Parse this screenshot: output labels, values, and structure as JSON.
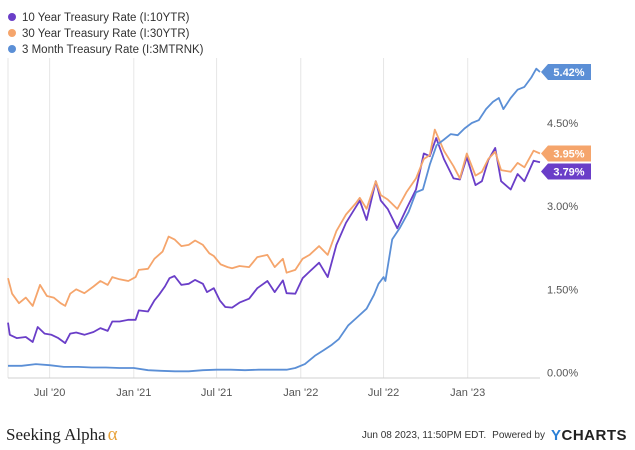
{
  "chart_data": {
    "type": "line",
    "title": "",
    "xlabel": "",
    "ylabel": "",
    "x_ticks": [
      {
        "date": "2020-07-01",
        "label": "Jul '20"
      },
      {
        "date": "2021-01-01",
        "label": "Jan '21"
      },
      {
        "date": "2021-07-01",
        "label": "Jul '21"
      },
      {
        "date": "2022-01-01",
        "label": "Jan '22"
      },
      {
        "date": "2022-07-01",
        "label": "Jul '22"
      },
      {
        "date": "2023-01-01",
        "label": "Jan '23"
      }
    ],
    "xlim": [
      "2020-04-01",
      "2023-06-08"
    ],
    "y_ticks": [
      {
        "value": 0,
        "label": "0.00%"
      },
      {
        "value": 1.5,
        "label": "1.50%"
      },
      {
        "value": 3.0,
        "label": "3.00%"
      },
      {
        "value": 4.5,
        "label": "4.50%"
      }
    ],
    "ylim": [
      -0.1,
      5.6
    ],
    "grid": "vertical",
    "legend_position": "top-left",
    "series": [
      {
        "name": "10 Year Treasury Rate (I:10YTR)",
        "color": "#6a3ec8",
        "last_label": "3.79%",
        "points": [
          [
            "2020-04-01",
            0.9
          ],
          [
            "2020-04-05",
            0.68
          ],
          [
            "2020-04-20",
            0.62
          ],
          [
            "2020-05-10",
            0.64
          ],
          [
            "2020-05-25",
            0.55
          ],
          [
            "2020-06-05",
            0.82
          ],
          [
            "2020-06-20",
            0.7
          ],
          [
            "2020-07-05",
            0.68
          ],
          [
            "2020-07-20",
            0.62
          ],
          [
            "2020-08-04",
            0.53
          ],
          [
            "2020-08-15",
            0.7
          ],
          [
            "2020-08-28",
            0.72
          ],
          [
            "2020-09-15",
            0.68
          ],
          [
            "2020-10-05",
            0.73
          ],
          [
            "2020-10-20",
            0.8
          ],
          [
            "2020-11-05",
            0.75
          ],
          [
            "2020-11-15",
            0.92
          ],
          [
            "2020-12-01",
            0.92
          ],
          [
            "2020-12-20",
            0.95
          ],
          [
            "2021-01-05",
            0.95
          ],
          [
            "2021-01-12",
            1.12
          ],
          [
            "2021-02-01",
            1.1
          ],
          [
            "2021-02-15",
            1.3
          ],
          [
            "2021-02-25",
            1.4
          ],
          [
            "2021-03-10",
            1.55
          ],
          [
            "2021-03-20",
            1.7
          ],
          [
            "2021-03-31",
            1.74
          ],
          [
            "2021-04-15",
            1.58
          ],
          [
            "2021-05-01",
            1.6
          ],
          [
            "2021-05-15",
            1.67
          ],
          [
            "2021-06-01",
            1.6
          ],
          [
            "2021-06-10",
            1.45
          ],
          [
            "2021-06-25",
            1.52
          ],
          [
            "2021-07-08",
            1.3
          ],
          [
            "2021-07-20",
            1.18
          ],
          [
            "2021-08-04",
            1.17
          ],
          [
            "2021-08-20",
            1.26
          ],
          [
            "2021-09-10",
            1.33
          ],
          [
            "2021-09-28",
            1.52
          ],
          [
            "2021-10-20",
            1.65
          ],
          [
            "2021-11-05",
            1.45
          ],
          [
            "2021-11-23",
            1.66
          ],
          [
            "2021-12-01",
            1.43
          ],
          [
            "2021-12-20",
            1.42
          ],
          [
            "2022-01-05",
            1.7
          ],
          [
            "2022-01-20",
            1.82
          ],
          [
            "2022-02-10",
            1.98
          ],
          [
            "2022-03-01",
            1.72
          ],
          [
            "2022-03-20",
            2.3
          ],
          [
            "2022-04-10",
            2.7
          ],
          [
            "2022-05-01",
            2.98
          ],
          [
            "2022-05-10",
            3.1
          ],
          [
            "2022-05-25",
            2.75
          ],
          [
            "2022-06-14",
            3.45
          ],
          [
            "2022-06-25",
            3.1
          ],
          [
            "2022-07-10",
            2.95
          ],
          [
            "2022-07-31",
            2.6
          ],
          [
            "2022-08-20",
            2.95
          ],
          [
            "2022-09-10",
            3.3
          ],
          [
            "2022-09-27",
            3.95
          ],
          [
            "2022-10-10",
            3.9
          ],
          [
            "2022-10-24",
            4.23
          ],
          [
            "2022-11-10",
            3.85
          ],
          [
            "2022-12-01",
            3.5
          ],
          [
            "2022-12-15",
            3.48
          ],
          [
            "2022-12-30",
            3.88
          ],
          [
            "2023-01-18",
            3.38
          ],
          [
            "2023-02-01",
            3.45
          ],
          [
            "2023-02-15",
            3.83
          ],
          [
            "2023-03-02",
            4.05
          ],
          [
            "2023-03-15",
            3.45
          ],
          [
            "2023-04-05",
            3.3
          ],
          [
            "2023-04-20",
            3.58
          ],
          [
            "2023-05-05",
            3.45
          ],
          [
            "2023-05-25",
            3.82
          ],
          [
            "2023-06-08",
            3.79
          ]
        ]
      },
      {
        "name": "30 Year Treasury Rate (I:30YTR)",
        "color": "#f5a56c",
        "last_label": "3.95%",
        "points": [
          [
            "2020-04-01",
            1.7
          ],
          [
            "2020-04-10",
            1.42
          ],
          [
            "2020-04-25",
            1.25
          ],
          [
            "2020-05-10",
            1.35
          ],
          [
            "2020-05-25",
            1.2
          ],
          [
            "2020-06-10",
            1.58
          ],
          [
            "2020-06-25",
            1.38
          ],
          [
            "2020-07-10",
            1.35
          ],
          [
            "2020-07-25",
            1.25
          ],
          [
            "2020-08-04",
            1.2
          ],
          [
            "2020-08-15",
            1.42
          ],
          [
            "2020-08-28",
            1.5
          ],
          [
            "2020-09-15",
            1.43
          ],
          [
            "2020-10-05",
            1.55
          ],
          [
            "2020-10-20",
            1.65
          ],
          [
            "2020-11-05",
            1.58
          ],
          [
            "2020-11-15",
            1.72
          ],
          [
            "2020-12-01",
            1.68
          ],
          [
            "2020-12-20",
            1.65
          ],
          [
            "2021-01-05",
            1.72
          ],
          [
            "2021-01-12",
            1.85
          ],
          [
            "2021-02-01",
            1.87
          ],
          [
            "2021-02-15",
            2.05
          ],
          [
            "2021-03-05",
            2.18
          ],
          [
            "2021-03-18",
            2.45
          ],
          [
            "2021-03-31",
            2.4
          ],
          [
            "2021-04-15",
            2.28
          ],
          [
            "2021-05-01",
            2.3
          ],
          [
            "2021-05-15",
            2.38
          ],
          [
            "2021-06-01",
            2.3
          ],
          [
            "2021-06-15",
            2.15
          ],
          [
            "2021-06-25",
            2.1
          ],
          [
            "2021-07-10",
            1.95
          ],
          [
            "2021-07-25",
            1.9
          ],
          [
            "2021-08-04",
            1.88
          ],
          [
            "2021-08-20",
            1.92
          ],
          [
            "2021-09-10",
            1.9
          ],
          [
            "2021-09-28",
            2.08
          ],
          [
            "2021-10-20",
            2.12
          ],
          [
            "2021-11-05",
            1.9
          ],
          [
            "2021-11-23",
            2.05
          ],
          [
            "2021-12-01",
            1.8
          ],
          [
            "2021-12-20",
            1.85
          ],
          [
            "2022-01-05",
            2.05
          ],
          [
            "2022-01-20",
            2.12
          ],
          [
            "2022-02-10",
            2.28
          ],
          [
            "2022-03-01",
            2.12
          ],
          [
            "2022-03-20",
            2.55
          ],
          [
            "2022-04-10",
            2.85
          ],
          [
            "2022-05-01",
            3.05
          ],
          [
            "2022-05-10",
            3.15
          ],
          [
            "2022-05-25",
            2.95
          ],
          [
            "2022-06-14",
            3.45
          ],
          [
            "2022-06-25",
            3.2
          ],
          [
            "2022-07-10",
            3.12
          ],
          [
            "2022-07-31",
            2.95
          ],
          [
            "2022-08-20",
            3.25
          ],
          [
            "2022-09-10",
            3.5
          ],
          [
            "2022-09-27",
            3.85
          ],
          [
            "2022-10-10",
            3.92
          ],
          [
            "2022-10-21",
            4.38
          ],
          [
            "2022-11-10",
            4.0
          ],
          [
            "2022-12-01",
            3.72
          ],
          [
            "2022-12-15",
            3.5
          ],
          [
            "2022-12-30",
            3.95
          ],
          [
            "2023-01-18",
            3.55
          ],
          [
            "2023-02-01",
            3.62
          ],
          [
            "2023-02-15",
            3.85
          ],
          [
            "2023-03-02",
            3.98
          ],
          [
            "2023-03-15",
            3.65
          ],
          [
            "2023-04-05",
            3.62
          ],
          [
            "2023-04-20",
            3.78
          ],
          [
            "2023-05-05",
            3.7
          ],
          [
            "2023-05-25",
            4.0
          ],
          [
            "2023-06-08",
            3.95
          ]
        ]
      },
      {
        "name": "3 Month Treasury Rate (I:3MTRNK)",
        "color": "#5b8fd6",
        "last_label": "5.42%",
        "points": [
          [
            "2020-04-01",
            0.12
          ],
          [
            "2020-05-01",
            0.12
          ],
          [
            "2020-06-01",
            0.15
          ],
          [
            "2020-07-01",
            0.13
          ],
          [
            "2020-08-01",
            0.1
          ],
          [
            "2020-09-01",
            0.1
          ],
          [
            "2020-10-01",
            0.09
          ],
          [
            "2020-11-01",
            0.09
          ],
          [
            "2020-12-01",
            0.08
          ],
          [
            "2021-01-01",
            0.08
          ],
          [
            "2021-02-01",
            0.04
          ],
          [
            "2021-03-01",
            0.03
          ],
          [
            "2021-04-01",
            0.02
          ],
          [
            "2021-05-01",
            0.02
          ],
          [
            "2021-06-01",
            0.04
          ],
          [
            "2021-07-01",
            0.05
          ],
          [
            "2021-08-01",
            0.05
          ],
          [
            "2021-09-01",
            0.04
          ],
          [
            "2021-10-01",
            0.05
          ],
          [
            "2021-11-01",
            0.05
          ],
          [
            "2021-12-01",
            0.05
          ],
          [
            "2021-12-20",
            0.08
          ],
          [
            "2022-01-10",
            0.15
          ],
          [
            "2022-02-01",
            0.3
          ],
          [
            "2022-02-20",
            0.4
          ],
          [
            "2022-03-10",
            0.5
          ],
          [
            "2022-03-25",
            0.6
          ],
          [
            "2022-04-15",
            0.85
          ],
          [
            "2022-05-05",
            1.0
          ],
          [
            "2022-05-25",
            1.15
          ],
          [
            "2022-06-10",
            1.4
          ],
          [
            "2022-06-20",
            1.6
          ],
          [
            "2022-07-01",
            1.72
          ],
          [
            "2022-07-05",
            1.65
          ],
          [
            "2022-07-20",
            2.4
          ],
          [
            "2022-08-05",
            2.6
          ],
          [
            "2022-08-25",
            2.9
          ],
          [
            "2022-09-10",
            3.25
          ],
          [
            "2022-09-25",
            3.3
          ],
          [
            "2022-10-10",
            3.75
          ],
          [
            "2022-10-25",
            4.1
          ],
          [
            "2022-11-10",
            4.2
          ],
          [
            "2022-11-25",
            4.3
          ],
          [
            "2022-12-10",
            4.28
          ],
          [
            "2022-12-25",
            4.4
          ],
          [
            "2023-01-10",
            4.5
          ],
          [
            "2023-01-25",
            4.55
          ],
          [
            "2023-02-10",
            4.75
          ],
          [
            "2023-02-25",
            4.88
          ],
          [
            "2023-03-10",
            4.95
          ],
          [
            "2023-03-20",
            4.75
          ],
          [
            "2023-04-05",
            4.95
          ],
          [
            "2023-04-20",
            5.1
          ],
          [
            "2023-05-05",
            5.15
          ],
          [
            "2023-05-20",
            5.32
          ],
          [
            "2023-05-31",
            5.48
          ],
          [
            "2023-06-08",
            5.42
          ]
        ]
      }
    ]
  },
  "footer": {
    "brand": "Seeking Alpha",
    "brand_symbol": "α",
    "timestamp": "Jun 08 2023, 11:50PM EDT.",
    "powered_by": "Powered by",
    "logo_y": "Y",
    "logo_rest": "CHARTS"
  }
}
